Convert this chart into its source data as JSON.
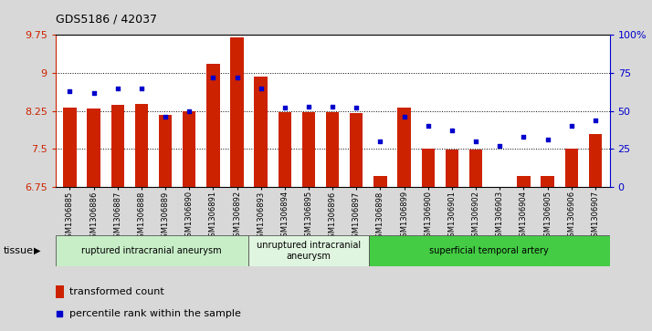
{
  "title": "GDS5186 / 42037",
  "samples": [
    "GSM1306885",
    "GSM1306886",
    "GSM1306887",
    "GSM1306888",
    "GSM1306889",
    "GSM1306890",
    "GSM1306891",
    "GSM1306892",
    "GSM1306893",
    "GSM1306894",
    "GSM1306895",
    "GSM1306896",
    "GSM1306897",
    "GSM1306898",
    "GSM1306899",
    "GSM1306900",
    "GSM1306901",
    "GSM1306902",
    "GSM1306903",
    "GSM1306904",
    "GSM1306905",
    "GSM1306906",
    "GSM1306907"
  ],
  "transformed_count": [
    8.32,
    8.3,
    8.36,
    8.38,
    8.18,
    8.25,
    9.18,
    9.7,
    8.92,
    8.22,
    8.22,
    8.22,
    8.2,
    6.97,
    8.32,
    7.5,
    7.48,
    7.48,
    6.65,
    6.97,
    6.97,
    7.5,
    7.8
  ],
  "percentile_rank": [
    63,
    62,
    65,
    65,
    46,
    50,
    72,
    72,
    65,
    52,
    53,
    53,
    52,
    30,
    46,
    40,
    37,
    30,
    27,
    33,
    31,
    40,
    44
  ],
  "ylim_left": [
    6.75,
    9.75
  ],
  "ylim_right": [
    0,
    100
  ],
  "yticks_left": [
    6.75,
    7.5,
    8.25,
    9.0,
    9.75
  ],
  "ytick_labels_left": [
    "6.75",
    "7.5",
    "8.25",
    "9",
    "9.75"
  ],
  "yticks_right": [
    0,
    25,
    50,
    75,
    100
  ],
  "ytick_labels_right": [
    "0",
    "25",
    "50",
    "75",
    "100%"
  ],
  "groups": [
    {
      "label": "ruptured intracranial aneurysm",
      "start": 0,
      "end": 8,
      "color": "#c8eec8"
    },
    {
      "label": "unruptured intracranial\naneurysm",
      "start": 8,
      "end": 13,
      "color": "#e0f5e0"
    },
    {
      "label": "superficial temporal artery",
      "start": 13,
      "end": 23,
      "color": "#44cc44"
    }
  ],
  "bar_color": "#cc2200",
  "dot_color": "#0000cc",
  "background_color": "#d8d8d8",
  "plot_bg_color": "#ffffff",
  "xticklabel_bg": "#d8d8d8",
  "legend_red_label": "transformed count",
  "legend_blue_label": "percentile rank within the sample",
  "grid_color": "black",
  "grid_linestyle": "dotted",
  "grid_linewidth": 0.7
}
